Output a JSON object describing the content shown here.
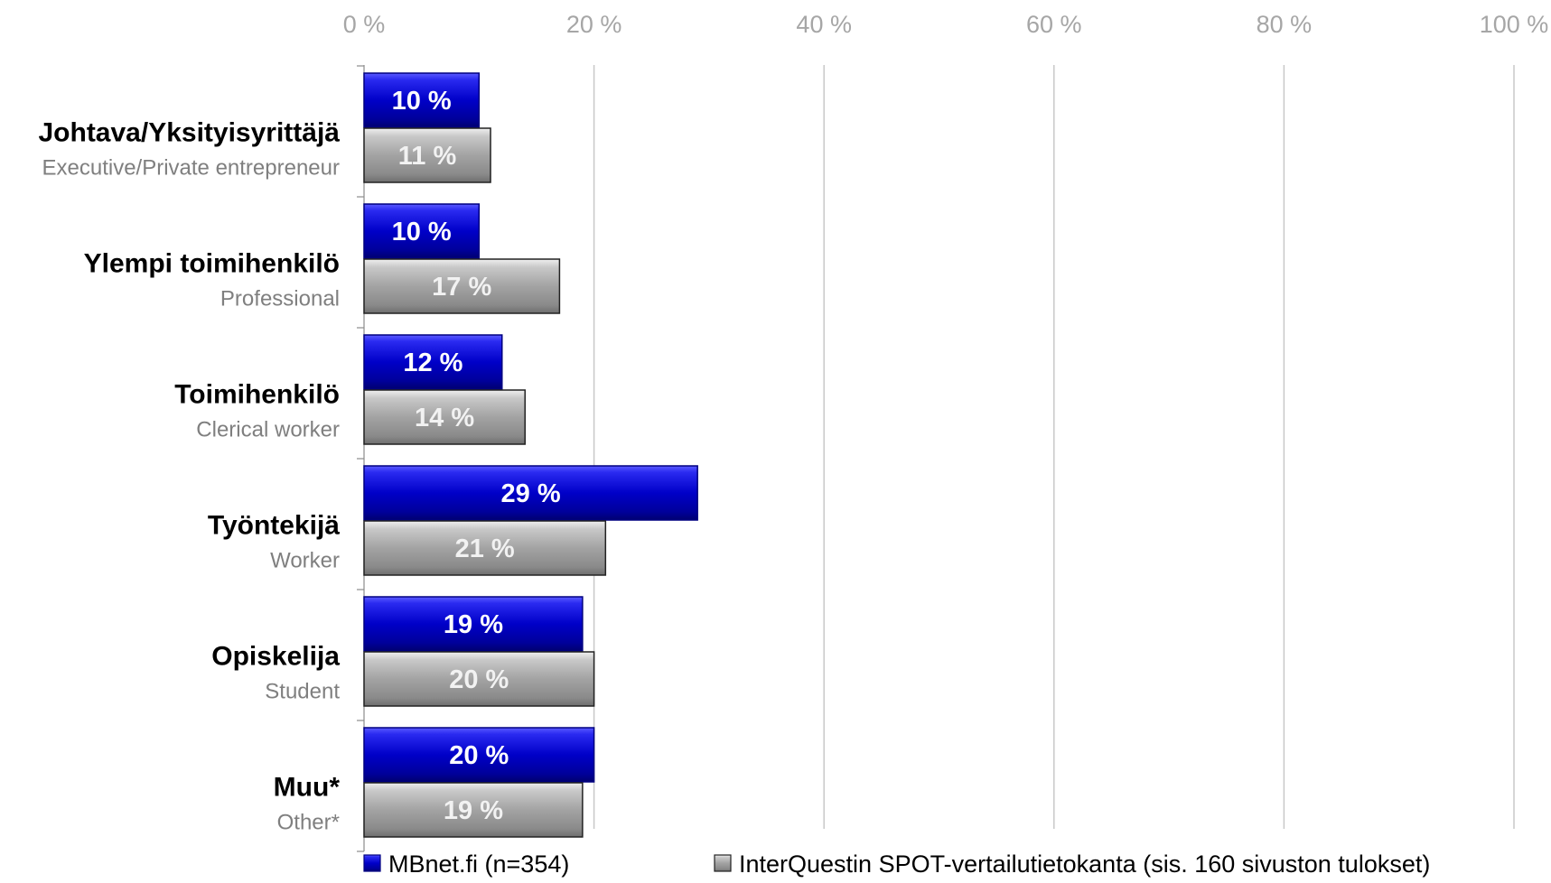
{
  "chart_data": {
    "type": "bar",
    "orientation": "horizontal",
    "x_ticks": [
      "0 %",
      "20 %",
      "40 %",
      "60 %",
      "80 %",
      "100 %"
    ],
    "xlim": [
      0,
      100
    ],
    "x_axis_position": "top",
    "grid": true,
    "legend_position": "bottom",
    "categories": [
      {
        "label": "Johtava/Yksityisyrittäjä",
        "sublabel": "Executive/Private entrepreneur"
      },
      {
        "label": "Ylempi toimihenkilö",
        "sublabel": "Professional"
      },
      {
        "label": "Toimihenkilö",
        "sublabel": "Clerical worker"
      },
      {
        "label": "Työntekijä",
        "sublabel": "Worker"
      },
      {
        "label": "Opiskelija",
        "sublabel": "Student"
      },
      {
        "label": "Muu*",
        "sublabel": "Other*"
      }
    ],
    "series": [
      {
        "name": "MBnet.fi (n=354)",
        "color": "#0000cc",
        "values": [
          10,
          10,
          12,
          29,
          19,
          20
        ],
        "labels": [
          "10 %",
          "10 %",
          "12 %",
          "29 %",
          "19 %",
          "20 %"
        ]
      },
      {
        "name": "InterQuestin SPOT-vertailutietokanta (sis. 160 sivuston tulokset)",
        "color": "#a6a6a6",
        "values": [
          11,
          17,
          14,
          21,
          20,
          19
        ],
        "labels": [
          "11 %",
          "17 %",
          "14 %",
          "21 %",
          "20 %",
          "19 %"
        ]
      }
    ]
  }
}
